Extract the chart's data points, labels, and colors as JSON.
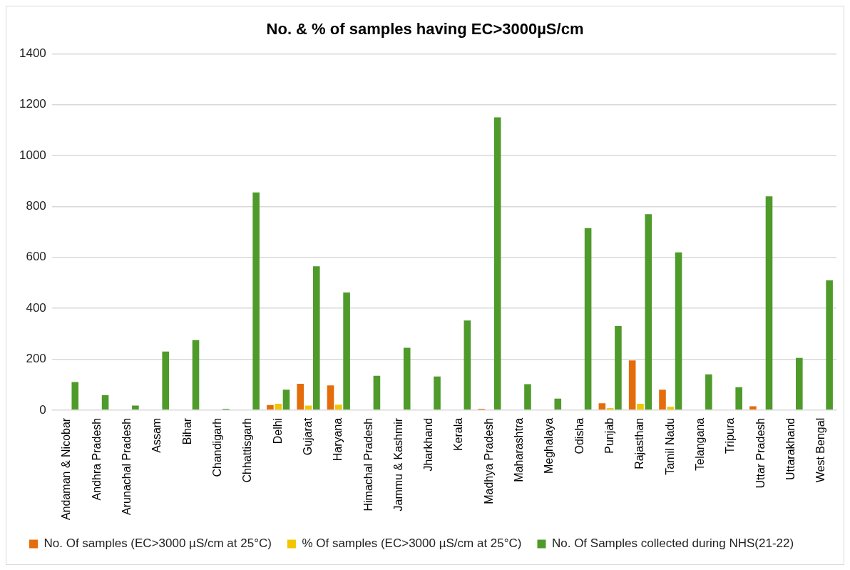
{
  "chart_data": {
    "type": "bar",
    "title": "No. & % of samples having EC>3000µS/cm",
    "categories": [
      "Andaman & Nicobar",
      "Andhra Pradesh",
      "Arunachal Pradesh",
      "Assam",
      "Bihar",
      "Chandigarh",
      "Chhattisgarh",
      "Delhi",
      "Gujarat",
      "Haryana",
      "Himachal Pradesh",
      "Jammu & Kashmir",
      "Jharkhand",
      "Kerala",
      "Madhya Pradesh",
      "Maharashtra",
      "Meghalaya",
      "Odisha",
      "Punjab",
      "Rajasthan",
      "Tamil Nadu",
      "Telangana",
      "Tripura",
      "Uttar Pradesh",
      "Uttarakhand",
      "West Bengal"
    ],
    "series": [
      {
        "name": "No. Of samples (EC>3000 µS/cm at 25°C)",
        "color": "#e46c0a",
        "values": [
          0,
          0,
          0,
          0,
          0,
          0,
          0,
          20,
          103,
          97,
          0,
          0,
          0,
          0,
          5,
          0,
          0,
          0,
          27,
          195,
          80,
          0,
          0,
          15,
          0,
          0
        ]
      },
      {
        "name": "% Of samples (EC>3000 µS/cm at 25°C)",
        "color": "#f2c500",
        "values": [
          0,
          0,
          0,
          0,
          0,
          0,
          0,
          25,
          18,
          21,
          0,
          0,
          0,
          0,
          0,
          0,
          0,
          0,
          8,
          25,
          13,
          0,
          0,
          0,
          0,
          0
        ]
      },
      {
        "name": "No. Of Samples collected during NHS(21-22)",
        "color": "#4e9a2a",
        "values": [
          110,
          58,
          18,
          230,
          275,
          5,
          855,
          80,
          565,
          462,
          135,
          245,
          132,
          352,
          1150,
          102,
          45,
          715,
          330,
          770,
          620,
          140,
          90,
          840,
          205,
          510
        ]
      }
    ],
    "ylim": [
      0,
      1400
    ],
    "yticks": [
      0,
      200,
      400,
      600,
      800,
      1000,
      1200,
      1400
    ],
    "grid": "y",
    "legend": "bottom"
  }
}
